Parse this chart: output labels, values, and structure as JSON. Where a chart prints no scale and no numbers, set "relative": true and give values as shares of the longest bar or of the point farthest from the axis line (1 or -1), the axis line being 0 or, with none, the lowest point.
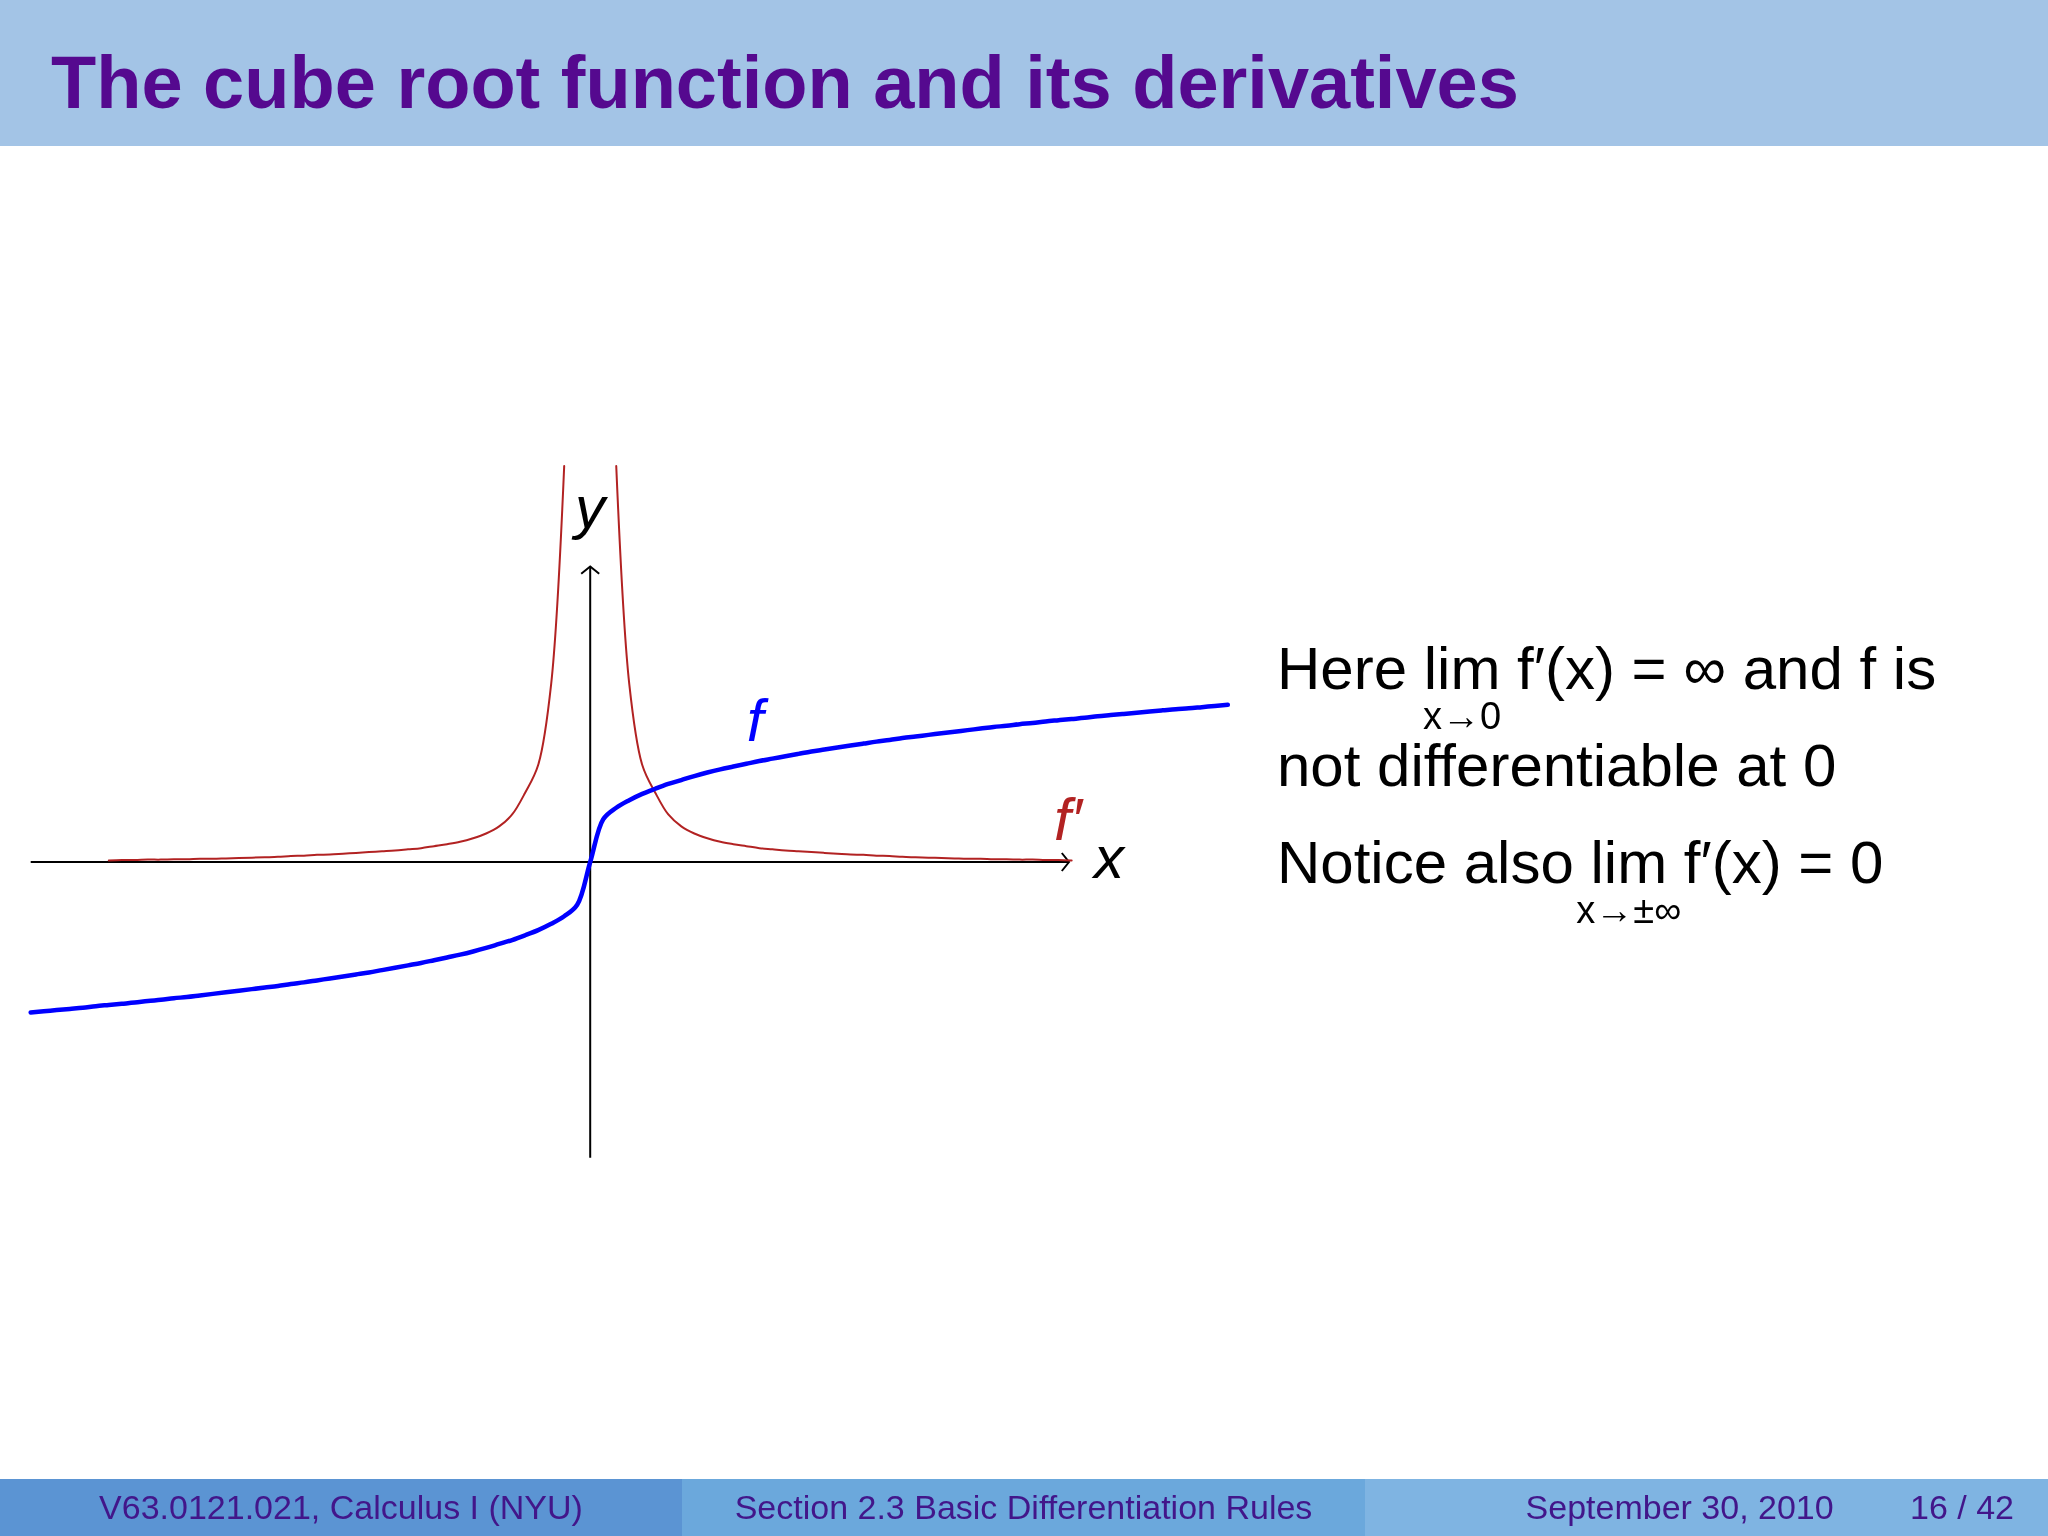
{
  "chart_data": {
    "type": "line",
    "title": "The cube root function and its derivatives",
    "xlabel": "x",
    "ylabel": "y",
    "relative": true,
    "line_style": "solid",
    "categories": [
      null,
      null,
      null,
      null,
      null,
      null,
      null,
      null,
      null,
      null,
      null,
      null,
      null,
      null,
      null,
      null,
      null,
      null,
      null,
      null,
      null,
      null,
      null,
      null,
      null,
      null,
      null,
      null,
      null,
      null,
      null,
      null,
      null,
      null,
      null,
      null,
      null,
      null,
      null,
      null,
      null,
      null,
      null,
      null,
      null,
      null,
      null,
      null,
      null,
      null,
      null,
      null,
      null,
      null,
      null,
      null,
      null,
      null,
      null,
      null,
      null,
      null,
      null,
      null,
      null,
      null,
      null,
      null,
      null,
      null,
      null,
      null,
      null,
      null,
      null,
      null,
      null,
      null,
      null,
      null,
      null,
      null,
      null,
      null,
      null,
      null,
      null,
      null,
      null,
      null,
      null,
      null,
      null
    ],
    "series": [
      {
        "name": "f",
        "color": "#0000ff",
        "values": [
          -0.38,
          -0.377,
          -0.374,
          -0.371,
          -0.368,
          -0.364,
          -0.361,
          -0.358,
          -0.355,
          -0.351,
          -0.348,
          -0.344,
          -0.341,
          -0.337,
          -0.333,
          -0.329,
          -0.325,
          -0.321,
          -0.317,
          -0.313,
          -0.308,
          -0.304,
          -0.299,
          -0.294,
          -0.289,
          -0.284,
          -0.279,
          -0.273,
          -0.267,
          -0.261,
          -0.255,
          -0.248,
          -0.241,
          -0.234,
          -0.226,
          -0.217,
          -0.207,
          -0.197,
          -0.185,
          -0.172,
          -0.156,
          -0.137,
          -0.108,
          0,
          0.108,
          0.137,
          0.156,
          0.172,
          0.185,
          0.197,
          0.207,
          0.217,
          0.226,
          0.234,
          0.241,
          0.248,
          0.255,
          0.261,
          0.267,
          0.273,
          0.279,
          0.284,
          0.289,
          0.294,
          0.299,
          0.304,
          0.308,
          0.313,
          0.317,
          0.321,
          0.325,
          0.329,
          0.333,
          0.337,
          0.341,
          0.344,
          0.348,
          0.351,
          0.355,
          0.358,
          0.361,
          0.364,
          0.368,
          0.371,
          0.374,
          0.377,
          0.38,
          0.383,
          0.386,
          0.388,
          0.391,
          0.394,
          0.397
        ]
      },
      {
        "name": "f′",
        "color": "#b22222",
        "values": [
          null,
          null,
          null,
          null,
          null,
          null,
          0.004,
          0.005,
          0.005,
          0.006,
          0.006,
          0.007,
          0.007,
          0.008,
          0.008,
          0.009,
          0.01,
          0.011,
          0.012,
          0.013,
          0.015,
          0.016,
          0.018,
          0.019,
          0.021,
          0.023,
          0.025,
          0.027,
          0.029,
          0.032,
          0.035,
          0.04,
          0.045,
          0.051,
          0.06,
          0.072,
          0.09,
          0.12,
          0.175,
          0.245,
          0.45,
          1.0,
          null,
          null,
          null,
          1.0,
          0.45,
          0.245,
          0.175,
          0.12,
          0.09,
          0.072,
          0.06,
          0.051,
          0.045,
          0.04,
          0.035,
          0.032,
          0.029,
          0.027,
          0.025,
          0.023,
          0.021,
          0.019,
          0.018,
          0.016,
          0.015,
          0.013,
          0.012,
          0.011,
          0.01,
          0.009,
          0.008,
          0.008,
          0.007,
          0.007,
          0.006,
          0.006,
          0.005,
          0.005,
          0.004,
          null,
          null,
          null,
          null,
          null,
          null,
          null,
          null,
          null,
          null,
          null,
          null
        ]
      }
    ],
    "annotations": [
      "Here lim f′(x) = ∞ and f is",
      "x→0",
      "not differentiable at 0",
      "Notice also lim f′(x) = 0",
      "x→±∞",
      "V63.0121.021, Calculus I (NYU)",
      "Section 2.3 Basic Differentiation Rules",
      "September 30, 2010",
      "16 / 42"
    ]
  }
}
